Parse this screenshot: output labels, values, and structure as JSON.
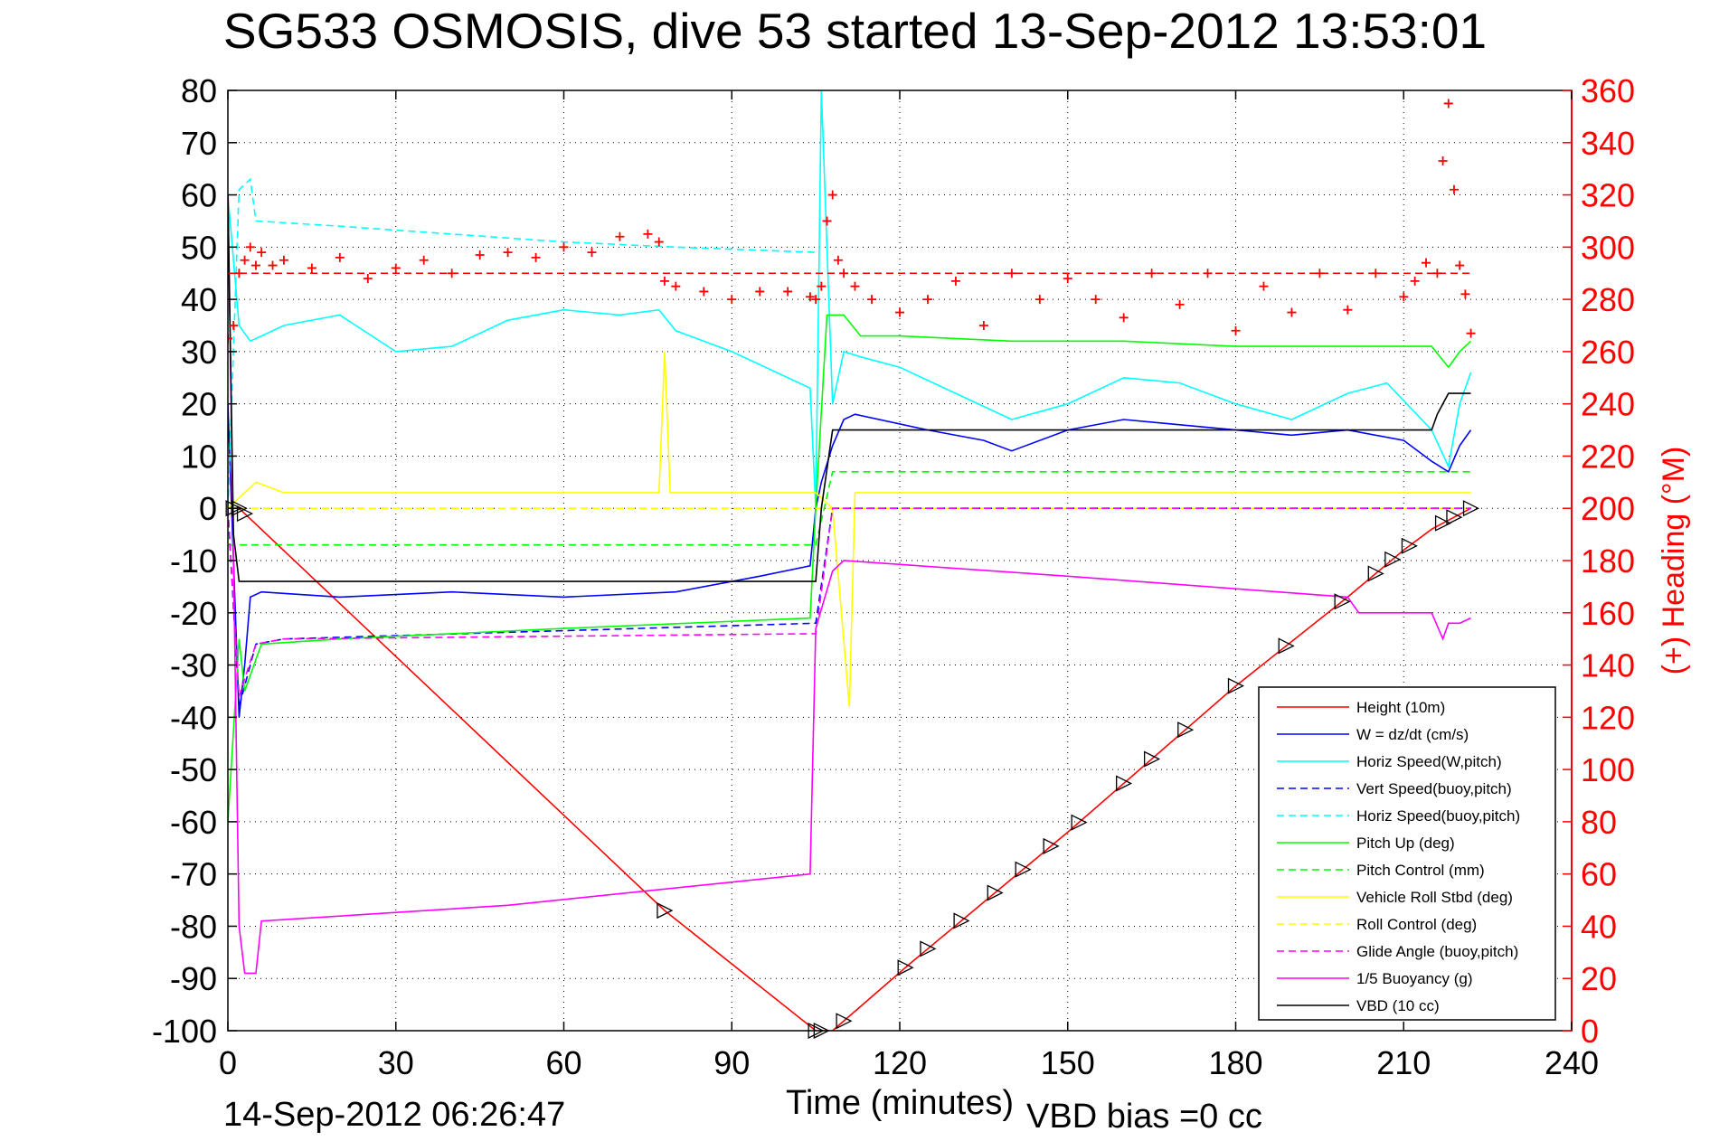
{
  "chart_data": {
    "type": "line",
    "title": "SG533 OSMOSIS, dive 53 started 13-Sep-2012 13:53:01",
    "xlabel": "Time (minutes)",
    "ylabel_right": "(+) Heading (°M)",
    "xlim": [
      0,
      240
    ],
    "ylim": [
      -100,
      80
    ],
    "ylim_right": [
      0,
      360
    ],
    "x_ticks": [
      "0",
      "30",
      "60",
      "90",
      "120",
      "150",
      "180",
      "210",
      "240"
    ],
    "y_ticks": [
      "80",
      "70",
      "60",
      "50",
      "40",
      "30",
      "20",
      "10",
      "0",
      "-10",
      "-20",
      "-30",
      "-40",
      "-50",
      "-60",
      "-70",
      "-80",
      "-90",
      "-100"
    ],
    "y_right_ticks": [
      "360",
      "340",
      "320",
      "300",
      "280",
      "260",
      "240",
      "220",
      "200",
      "180",
      "160",
      "140",
      "120",
      "100",
      "80",
      "60",
      "40",
      "20",
      "0"
    ],
    "grid": true,
    "legend_position": "bottom-right",
    "colors": {
      "height": "#ff0000",
      "w": "#0000ff",
      "horiz_speed": "#00ffff",
      "pitch": "#00ff00",
      "roll": "#ffff00",
      "glide": "#ff00ff",
      "buoyancy": "#ff00ff",
      "vbd": "#000000",
      "heading": "#ff0000"
    },
    "series": [
      {
        "name": "Height (10m)",
        "style": "solid",
        "color": "#ff0000",
        "x": [
          0,
          2,
          78,
          105,
          108,
          122,
          150,
          180,
          200,
          210,
          215,
          222
        ],
        "y": [
          0,
          0,
          -77,
          -100,
          -100,
          -87,
          -62,
          -34,
          -17,
          -8,
          -4,
          0
        ]
      },
      {
        "name": "W = dz/dt (cm/s)",
        "style": "solid",
        "color": "#0000ff",
        "x": [
          0,
          1,
          2,
          3,
          4,
          6,
          20,
          40,
          60,
          80,
          95,
          104,
          105,
          106,
          108,
          110,
          112,
          125,
          135,
          140,
          150,
          160,
          170,
          180,
          190,
          200,
          210,
          215,
          218,
          220,
          222
        ],
        "y": [
          20,
          -10,
          -40,
          -30,
          -17,
          -16,
          -17,
          -16,
          -17,
          -16,
          -13,
          -11,
          0,
          5,
          12,
          17,
          18,
          15,
          13,
          11,
          15,
          17,
          16,
          15,
          14,
          15,
          13,
          9,
          7,
          12,
          15
        ]
      },
      {
        "name": "Horiz Speed(W,pitch)",
        "style": "solid",
        "color": "#00ffff",
        "x": [
          0,
          2,
          4,
          6,
          10,
          20,
          30,
          40,
          50,
          60,
          70,
          77,
          80,
          90,
          104,
          105,
          106,
          108,
          110,
          113,
          120,
          130,
          140,
          150,
          160,
          170,
          180,
          190,
          200,
          207,
          215,
          218,
          220,
          222
        ],
        "y": [
          60,
          35,
          32,
          33,
          35,
          37,
          30,
          31,
          36,
          38,
          37,
          38,
          34,
          30,
          23,
          0,
          80,
          20,
          30,
          29,
          27,
          22,
          17,
          20,
          25,
          24,
          20,
          17,
          22,
          24,
          15,
          8,
          20,
          26
        ]
      },
      {
        "name": "Vert Speed(buoy,pitch)",
        "style": "dashed",
        "color": "#0000ff",
        "x": [
          0,
          2,
          5,
          10,
          105,
          108,
          222
        ],
        "y": [
          0,
          -38,
          -26,
          -25,
          -22,
          0,
          0
        ]
      },
      {
        "name": "Horiz Speed(buoy,pitch)",
        "style": "dashed",
        "color": "#00ffff",
        "x": [
          0,
          2,
          4,
          5,
          20,
          60,
          80,
          105
        ],
        "y": [
          0,
          61,
          63,
          55,
          54,
          51,
          50,
          49
        ]
      },
      {
        "name": "Pitch Up (deg)",
        "style": "solid",
        "color": "#00ff00",
        "x": [
          0,
          2,
          3,
          6,
          20,
          60,
          104,
          105,
          107,
          110,
          113,
          120,
          140,
          160,
          180,
          200,
          215,
          218,
          220,
          222
        ],
        "y": [
          -60,
          -25,
          -35,
          -26,
          -25,
          -23,
          -21,
          0,
          37,
          37,
          33,
          33,
          32,
          32,
          31,
          31,
          31,
          27,
          30,
          32
        ]
      },
      {
        "name": "Pitch Control (mm)",
        "style": "dashed",
        "color": "#00ff00",
        "x": [
          0,
          3,
          105,
          108,
          222
        ],
        "y": [
          -7,
          -7,
          -7,
          7,
          7
        ]
      },
      {
        "name": "Vehicle Roll Stbd (deg)",
        "style": "solid",
        "color": "#ffff00",
        "x": [
          0,
          3,
          5,
          10,
          77,
          78,
          79,
          105,
          108,
          111,
          112,
          222
        ],
        "y": [
          0,
          3,
          5,
          3,
          3,
          30,
          3,
          3,
          0,
          -38,
          3,
          3
        ]
      },
      {
        "name": "Roll Control (deg)",
        "style": "dashed",
        "color": "#ffff00",
        "x": [
          0,
          2,
          222
        ],
        "y": [
          0,
          0,
          0
        ]
      },
      {
        "name": "Glide Angle (buoy,pitch)",
        "style": "dashed",
        "color": "#ff00ff",
        "x": [
          0,
          2,
          5,
          10,
          105,
          108,
          222
        ],
        "y": [
          0,
          -36,
          -26,
          -25,
          -24,
          0,
          0
        ]
      },
      {
        "name": "1/5 Buoyancy (g)",
        "style": "solid",
        "color": "#ff00ff",
        "x": [
          0,
          2,
          3,
          4,
          5,
          6,
          50,
          104,
          105,
          108,
          110,
          150,
          200,
          202,
          210,
          215,
          217,
          218,
          220,
          222
        ],
        "y": [
          60,
          -80,
          -89,
          -89,
          -89,
          -79,
          -76,
          -70,
          -23,
          -12,
          -10,
          -13,
          -17,
          -20,
          -20,
          -20,
          -25,
          -22,
          -22,
          -21
        ]
      },
      {
        "name": "VBD (10 cc)",
        "style": "solid",
        "color": "#000000",
        "x": [
          0,
          1,
          2,
          105,
          106,
          108,
          215,
          216,
          218,
          222
        ],
        "y": [
          60,
          -5,
          -14,
          -14,
          0,
          15,
          15,
          18,
          22,
          22
        ]
      }
    ],
    "heading": {
      "name": "Heading (right axis)",
      "color": "#ff0000",
      "ref_line": 290,
      "x": [
        0,
        1,
        2,
        3,
        4,
        5,
        6,
        8,
        10,
        15,
        20,
        25,
        30,
        35,
        40,
        45,
        50,
        55,
        60,
        65,
        70,
        75,
        77,
        78,
        80,
        85,
        90,
        95,
        100,
        104,
        105,
        106,
        107,
        108,
        109,
        110,
        112,
        115,
        120,
        125,
        130,
        135,
        140,
        145,
        150,
        155,
        160,
        165,
        170,
        175,
        180,
        185,
        190,
        195,
        200,
        205,
        210,
        212,
        214,
        216,
        217,
        218,
        219,
        220,
        221,
        222
      ],
      "y": [
        265,
        270,
        290,
        295,
        300,
        293,
        298,
        293,
        295,
        292,
        296,
        288,
        292,
        295,
        290,
        297,
        298,
        296,
        300,
        298,
        304,
        305,
        302,
        287,
        285,
        283,
        280,
        283,
        283,
        281,
        280,
        285,
        310,
        320,
        295,
        290,
        285,
        280,
        275,
        280,
        287,
        270,
        290,
        280,
        288,
        280,
        273,
        290,
        278,
        290,
        268,
        285,
        275,
        290,
        276,
        290,
        281,
        287,
        294,
        290,
        333,
        355,
        322,
        293,
        282,
        267
      ]
    },
    "heading_marker_hint": "plus markers",
    "waypoints_marker_hint": "triangle markers on height line"
  },
  "legend": [
    {
      "label": "Height (10m)",
      "color": "#ff0000",
      "dash": false
    },
    {
      "label": "W = dz/dt (cm/s)",
      "color": "#0000ff",
      "dash": false
    },
    {
      "label": "Horiz Speed(W,pitch)",
      "color": "#00ffff",
      "dash": false
    },
    {
      "label": "Vert Speed(buoy,pitch)",
      "color": "#0000ff",
      "dash": true
    },
    {
      "label": "Horiz Speed(buoy,pitch)",
      "color": "#00ffff",
      "dash": true
    },
    {
      "label": "Pitch Up (deg)",
      "color": "#00ff00",
      "dash": false
    },
    {
      "label": "Pitch Control (mm)",
      "color": "#00ff00",
      "dash": true
    },
    {
      "label": "Vehicle Roll Stbd (deg)",
      "color": "#ffff00",
      "dash": false
    },
    {
      "label": "Roll Control (deg)",
      "color": "#ffff00",
      "dash": true
    },
    {
      "label": "Glide Angle (buoy,pitch)",
      "color": "#ff00ff",
      "dash": true
    },
    {
      "label": "1/5 Buoyancy (g)",
      "color": "#ff00ff",
      "dash": false
    },
    {
      "label": "VBD (10 cc)",
      "color": "#000000",
      "dash": false
    }
  ],
  "footer": {
    "date": "14-Sep-2012 06:26:47",
    "vbd_bias": "VBD bias =0 cc"
  }
}
